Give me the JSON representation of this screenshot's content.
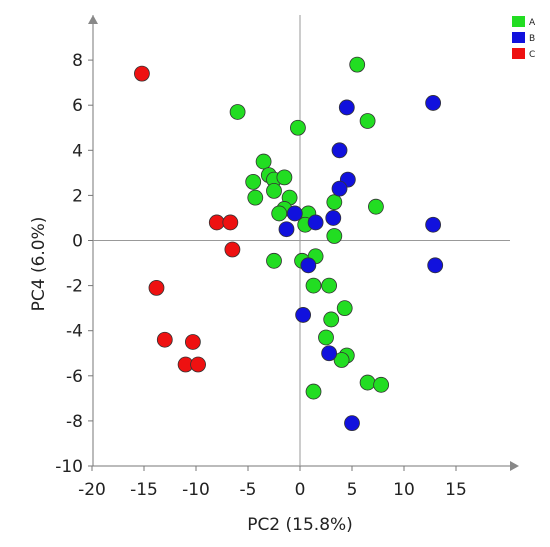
{
  "chart_data": {
    "type": "scatter",
    "xlabel": "PC2 (15.8%)",
    "ylabel": "PC4 (6.0%)",
    "xlim": [
      -20,
      20
    ],
    "ylim": [
      -10,
      10
    ],
    "xticks": [
      -20,
      -15,
      -10,
      -5,
      0,
      5,
      10,
      15
    ],
    "yticks": [
      -10,
      -8,
      -6,
      -4,
      -2,
      0,
      2,
      4,
      6,
      8
    ],
    "grid": false,
    "legend": "top-right",
    "series": [
      {
        "name": "A",
        "color": "#22dd22",
        "points": [
          [
            5.5,
            7.8
          ],
          [
            -6,
            5.7
          ],
          [
            -0.2,
            5
          ],
          [
            6.5,
            5.3
          ],
          [
            -3.5,
            3.5
          ],
          [
            -4.5,
            2.6
          ],
          [
            -3,
            2.9
          ],
          [
            -2.5,
            2.7
          ],
          [
            -1.5,
            2.8
          ],
          [
            -4.3,
            1.9
          ],
          [
            -2.5,
            2.2
          ],
          [
            -1,
            1.9
          ],
          [
            -1.5,
            1.4
          ],
          [
            -2,
            1.2
          ],
          [
            7.3,
            1.5
          ],
          [
            3.3,
            1.7
          ],
          [
            0.8,
            1.2
          ],
          [
            0.5,
            0.7
          ],
          [
            3.3,
            0.2
          ],
          [
            -2.5,
            -0.9
          ],
          [
            0.2,
            -0.9
          ],
          [
            1.5,
            -0.7
          ],
          [
            1.3,
            -2
          ],
          [
            2.8,
            -2
          ],
          [
            4.3,
            -3
          ],
          [
            3,
            -3.5
          ],
          [
            2.5,
            -4.3
          ],
          [
            4.5,
            -5.1
          ],
          [
            4.0,
            -5.3
          ],
          [
            6.5,
            -6.3
          ],
          [
            7.8,
            -6.4
          ],
          [
            1.3,
            -6.7
          ]
        ]
      },
      {
        "name": "B",
        "color": "#1111dd",
        "points": [
          [
            4.5,
            5.9
          ],
          [
            12.8,
            6.1
          ],
          [
            3.8,
            4.0
          ],
          [
            4.6,
            2.7
          ],
          [
            3.8,
            2.3
          ],
          [
            -0.5,
            1.2
          ],
          [
            3.2,
            1.0
          ],
          [
            1.5,
            0.8
          ],
          [
            -1.3,
            0.5
          ],
          [
            12.8,
            0.7
          ],
          [
            0.8,
            -1.1
          ],
          [
            13.0,
            -1.1
          ],
          [
            0.3,
            -3.3
          ],
          [
            2.8,
            -5.0
          ],
          [
            5.0,
            -8.1
          ]
        ]
      },
      {
        "name": "C",
        "color": "#ee1111",
        "points": [
          [
            -15.2,
            7.4
          ],
          [
            -8.0,
            0.8
          ],
          [
            -6.7,
            0.8
          ],
          [
            -6.5,
            -0.4
          ],
          [
            -13.8,
            -2.1
          ],
          [
            -13.0,
            -4.4
          ],
          [
            -10.3,
            -4.5
          ],
          [
            -11.0,
            -5.5
          ],
          [
            -9.8,
            -5.5
          ]
        ]
      }
    ]
  }
}
